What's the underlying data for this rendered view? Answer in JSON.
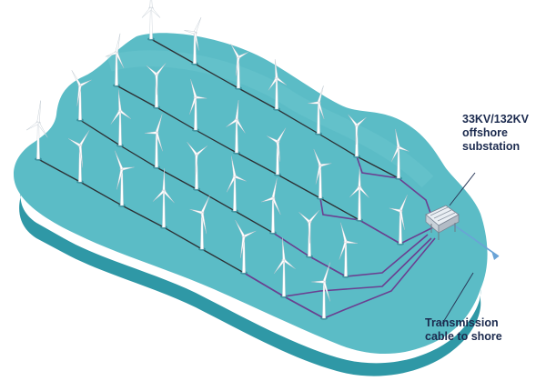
{
  "substation_label": [
    "33KV/132KV",
    "offshore",
    "substation"
  ],
  "transmission_label": [
    "Transmission",
    "cable to shore"
  ],
  "colors": {
    "sea_top": "#5bbcc6",
    "sea_side": "#2f98a6",
    "sea_side_dark": "#24808d",
    "inter_array_cable": "#2c2f33",
    "export_cable": "#6b3f91",
    "shore_cable": "#6aa3d6",
    "turbine_tower": "#ffffff",
    "label_text": "#1b2a4e"
  }
}
